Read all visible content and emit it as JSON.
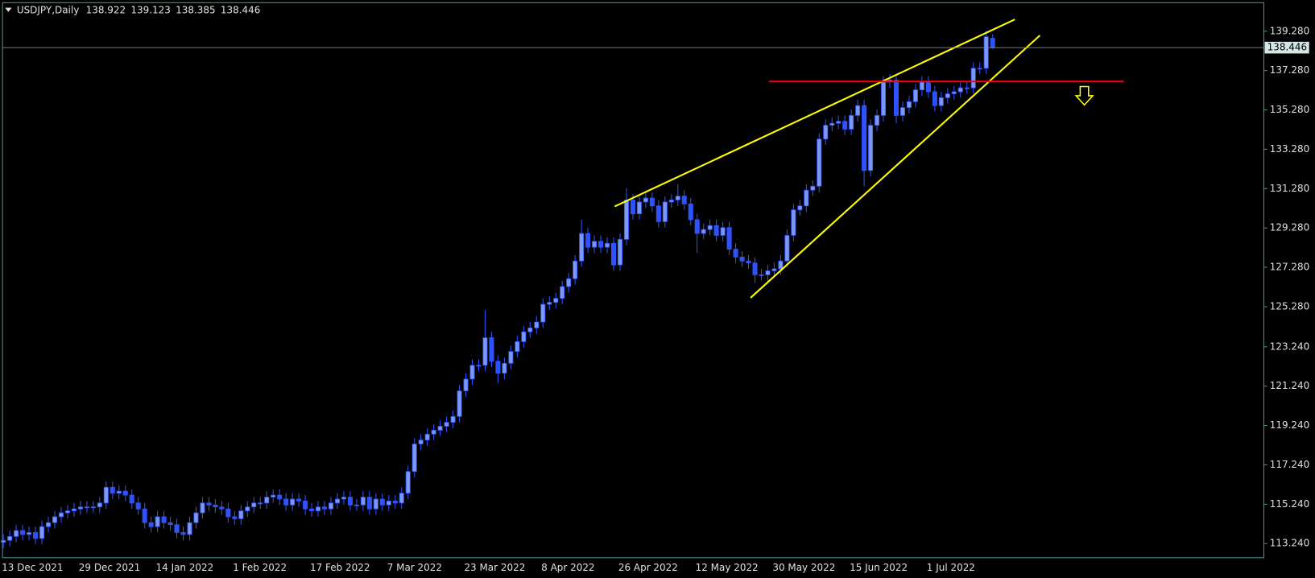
{
  "chart_data": {
    "type": "candlestick",
    "title": "USDJPY,Daily",
    "categories": [
      "13 Dec 2021",
      null,
      null,
      null,
      null,
      null,
      null,
      null,
      null,
      null,
      null,
      null,
      "29 Dec 2021",
      null,
      null,
      null,
      null,
      null,
      null,
      null,
      null,
      null,
      null,
      null,
      "14 Jan 2022",
      null,
      null,
      null,
      null,
      null,
      null,
      null,
      null,
      null,
      null,
      null,
      "1 Feb 2022",
      null,
      null,
      null,
      null,
      null,
      null,
      null,
      null,
      null,
      null,
      null,
      "17 Feb 2022",
      null,
      null,
      null,
      null,
      null,
      null,
      null,
      null,
      null,
      null,
      null,
      "7 Mar 2022",
      null,
      null,
      null,
      null,
      null,
      null,
      null,
      null,
      null,
      null,
      null,
      "23 Mar 2022",
      null,
      null,
      null,
      null,
      null,
      null,
      null,
      null,
      null,
      null,
      null,
      "8 Apr 2022",
      null,
      null,
      null,
      null,
      null,
      null,
      null,
      null,
      null,
      null,
      null,
      "26 Apr 2022",
      null,
      null,
      null,
      null,
      null,
      null,
      null,
      null,
      null,
      null,
      null,
      "12 May 2022",
      null,
      null,
      null,
      null,
      null,
      null,
      null,
      null,
      null,
      null,
      null,
      "30 May 2022",
      null,
      null,
      null,
      null,
      null,
      null,
      null,
      null,
      null,
      null,
      null,
      "15 Jun 2022",
      null,
      null,
      null,
      null,
      null,
      null,
      null,
      null,
      null,
      null,
      null,
      "1 Jul 2022",
      null,
      null,
      null,
      null,
      null,
      null,
      null,
      null,
      null,
      null
    ],
    "open": [
      113.3,
      113.4,
      113.6,
      113.9,
      113.7,
      113.8,
      113.5,
      114.1,
      114.3,
      114.6,
      114.8,
      114.9,
      115.0,
      115.1,
      115.1,
      115.1,
      115.3,
      116.1,
      115.8,
      115.9,
      115.7,
      115.3,
      115.0,
      114.3,
      114.1,
      114.6,
      114.3,
      114.2,
      113.8,
      113.7,
      114.3,
      114.8,
      115.3,
      115.2,
      115.1,
      115.0,
      114.6,
      114.5,
      114.9,
      115.1,
      115.3,
      115.3,
      115.6,
      115.7,
      115.5,
      115.2,
      115.5,
      115.4,
      115.0,
      114.9,
      115.1,
      115.0,
      115.3,
      115.5,
      115.6,
      115.2,
      115.2,
      115.6,
      115.0,
      115.5,
      115.2,
      115.4,
      115.3,
      115.8,
      116.9,
      118.3,
      118.5,
      118.8,
      119.0,
      119.2,
      119.4,
      119.7,
      121.0,
      121.6,
      122.3,
      122.3,
      123.7,
      122.5,
      121.9,
      122.4,
      123.0,
      123.5,
      124.0,
      124.2,
      124.5,
      125.4,
      125.5,
      125.7,
      126.3,
      126.7,
      127.6,
      129.0,
      128.3,
      128.6,
      128.3,
      128.5,
      127.4,
      128.7,
      130.7,
      130.0,
      130.6,
      130.8,
      130.4,
      129.6,
      130.6,
      130.7,
      130.9,
      130.5,
      129.7,
      129.0,
      129.2,
      129.4,
      128.9,
      129.3,
      128.2,
      127.8,
      127.6,
      127.5,
      126.9,
      126.9,
      127.1,
      127.2,
      127.6,
      128.9,
      130.2,
      130.4,
      131.2,
      131.4,
      133.8,
      134.5,
      134.6,
      134.7,
      134.3,
      135.0,
      135.5,
      132.2,
      134.5,
      135.0,
      136.7,
      136.8,
      135.0,
      135.4,
      135.7,
      136.3,
      136.7,
      136.2,
      135.5,
      135.9,
      136.1,
      136.2,
      136.4,
      136.4,
      137.4,
      137.4,
      138.922
    ],
    "high": [
      113.7,
      113.9,
      114.2,
      114.2,
      114.1,
      114.1,
      114.4,
      114.6,
      114.9,
      115.1,
      115.2,
      115.3,
      115.4,
      115.4,
      115.4,
      115.6,
      116.4,
      116.4,
      116.2,
      116.2,
      116.0,
      115.6,
      115.3,
      114.6,
      114.9,
      114.9,
      114.6,
      114.5,
      114.1,
      114.6,
      115.1,
      115.6,
      115.6,
      115.5,
      115.4,
      115.3,
      114.9,
      115.2,
      115.4,
      115.6,
      115.6,
      115.9,
      116.0,
      116.0,
      115.8,
      115.8,
      115.8,
      115.7,
      115.3,
      115.4,
      115.4,
      115.6,
      115.8,
      115.9,
      115.9,
      115.5,
      115.9,
      115.9,
      115.8,
      115.8,
      115.7,
      115.7,
      116.1,
      117.2,
      118.6,
      118.8,
      119.1,
      119.3,
      119.5,
      119.7,
      120.0,
      121.3,
      121.9,
      122.6,
      122.6,
      125.1,
      124.0,
      122.8,
      122.7,
      123.3,
      123.8,
      124.3,
      124.5,
      124.8,
      125.7,
      125.8,
      126.0,
      126.6,
      127.0,
      127.9,
      129.7,
      129.3,
      128.9,
      128.9,
      128.8,
      128.8,
      129.0,
      131.3,
      131.0,
      130.9,
      131.1,
      131.1,
      130.7,
      130.9,
      131.0,
      131.5,
      131.2,
      130.8,
      130.0,
      129.5,
      129.7,
      129.7,
      129.6,
      129.6,
      128.5,
      128.1,
      127.9,
      127.8,
      127.2,
      127.4,
      127.5,
      127.9,
      129.2,
      130.5,
      130.7,
      131.5,
      131.7,
      134.1,
      134.8,
      134.9,
      135.0,
      135.0,
      135.3,
      135.8,
      135.8,
      134.8,
      135.3,
      137.0,
      137.1,
      137.1,
      135.7,
      136.0,
      136.6,
      137.0,
      137.0,
      136.5,
      136.2,
      136.4,
      136.5,
      136.7,
      136.7,
      137.7,
      137.7,
      139.3,
      139.123
    ],
    "low": [
      113.0,
      113.1,
      113.3,
      113.4,
      113.4,
      113.2,
      113.2,
      113.8,
      114.0,
      114.3,
      114.5,
      114.6,
      114.7,
      114.8,
      114.8,
      114.8,
      115.0,
      115.5,
      115.5,
      115.4,
      115.0,
      114.7,
      114.0,
      113.8,
      113.8,
      114.0,
      113.9,
      113.5,
      113.4,
      113.4,
      114.0,
      114.5,
      114.9,
      114.8,
      114.7,
      114.3,
      114.2,
      114.2,
      114.6,
      114.8,
      115.0,
      115.0,
      115.3,
      115.2,
      114.9,
      114.9,
      115.1,
      114.7,
      114.6,
      114.6,
      114.7,
      114.7,
      115.0,
      115.2,
      114.9,
      114.9,
      114.9,
      114.7,
      114.7,
      114.9,
      114.9,
      115.0,
      115.0,
      115.5,
      116.6,
      118.0,
      118.2,
      118.5,
      118.7,
      118.9,
      119.1,
      119.4,
      120.7,
      121.3,
      122.0,
      122.0,
      122.2,
      121.4,
      121.6,
      122.1,
      122.7,
      123.2,
      123.7,
      123.9,
      124.2,
      125.1,
      125.2,
      125.4,
      126.0,
      126.4,
      127.3,
      128.0,
      128.0,
      128.0,
      128.0,
      127.1,
      127.1,
      128.4,
      129.7,
      129.7,
      130.3,
      130.1,
      129.3,
      129.3,
      130.3,
      130.4,
      130.2,
      129.4,
      128.0,
      128.7,
      128.9,
      128.6,
      128.6,
      127.9,
      127.5,
      127.3,
      127.2,
      126.5,
      126.6,
      126.6,
      126.8,
      126.9,
      127.3,
      128.6,
      129.9,
      130.1,
      130.9,
      131.1,
      133.5,
      134.2,
      134.3,
      134.0,
      134.0,
      134.7,
      131.4,
      131.9,
      134.2,
      134.7,
      136.4,
      134.6,
      134.7,
      135.1,
      135.4,
      136.0,
      135.9,
      135.2,
      135.2,
      135.6,
      135.8,
      135.9,
      136.1,
      136.1,
      137.1,
      137.1,
      138.385
    ],
    "close": [
      113.4,
      113.6,
      113.9,
      113.7,
      113.8,
      113.5,
      114.1,
      114.3,
      114.6,
      114.8,
      114.9,
      115.0,
      115.1,
      115.1,
      115.1,
      115.3,
      116.1,
      115.8,
      115.9,
      115.7,
      115.3,
      115.0,
      114.3,
      114.1,
      114.6,
      114.3,
      114.2,
      113.8,
      113.7,
      114.3,
      114.8,
      115.3,
      115.2,
      115.1,
      115.0,
      114.6,
      114.5,
      114.9,
      115.1,
      115.3,
      115.3,
      115.6,
      115.7,
      115.5,
      115.2,
      115.5,
      115.4,
      115.0,
      114.9,
      115.1,
      115.0,
      115.3,
      115.5,
      115.6,
      115.2,
      115.2,
      115.6,
      115.0,
      115.5,
      115.2,
      115.4,
      115.3,
      115.8,
      116.9,
      118.3,
      118.5,
      118.8,
      119.0,
      119.2,
      119.4,
      119.7,
      121.0,
      121.6,
      122.3,
      122.3,
      123.7,
      122.5,
      121.9,
      122.4,
      123.0,
      123.5,
      124.0,
      124.2,
      124.5,
      125.4,
      125.5,
      125.7,
      126.3,
      126.7,
      127.6,
      129.0,
      128.3,
      128.6,
      128.3,
      128.5,
      127.4,
      128.7,
      130.7,
      130.0,
      130.6,
      130.8,
      130.4,
      129.6,
      130.6,
      130.7,
      130.9,
      130.5,
      129.7,
      129.0,
      129.2,
      129.4,
      128.9,
      129.3,
      128.2,
      127.8,
      127.6,
      127.5,
      126.9,
      126.9,
      127.1,
      127.2,
      127.6,
      128.9,
      130.2,
      130.4,
      131.2,
      131.4,
      133.8,
      134.5,
      134.6,
      134.7,
      134.3,
      135.0,
      135.5,
      132.2,
      134.5,
      135.0,
      136.7,
      136.8,
      135.0,
      135.4,
      135.7,
      136.3,
      136.7,
      136.2,
      135.5,
      135.9,
      136.1,
      136.2,
      136.4,
      136.4,
      137.4,
      137.4,
      139.0,
      138.446
    ],
    "ylim": [
      112.52,
      140.73
    ],
    "yticks": [
      {
        "value": 113.24,
        "label": "113.240"
      },
      {
        "value": 115.24,
        "label": "115.240"
      },
      {
        "value": 117.24,
        "label": "117.240"
      },
      {
        "value": 119.24,
        "label": "119.240"
      },
      {
        "value": 121.24,
        "label": "121.240"
      },
      {
        "value": 123.24,
        "label": "123.240"
      },
      {
        "value": 125.28,
        "label": "125.280"
      },
      {
        "value": 127.28,
        "label": "127.280"
      },
      {
        "value": 129.28,
        "label": "129.280"
      },
      {
        "value": 131.28,
        "label": "131.280"
      },
      {
        "value": 133.28,
        "label": "133.280"
      },
      {
        "value": 135.28,
        "label": "135.280"
      },
      {
        "value": 137.28,
        "label": "137.280"
      },
      {
        "value": 139.28,
        "label": "139.280"
      }
    ],
    "grid": false,
    "up_color": "#7a98f4",
    "down_color": "#2f52ff"
  }
}
